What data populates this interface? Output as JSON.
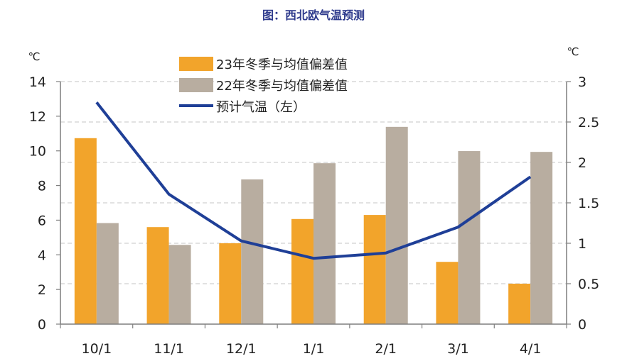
{
  "colors": {
    "series_23": "#f2a42b",
    "series_22": "#b8ada0",
    "forecast_line": "#1f3f97",
    "title": "#2e3a8c",
    "grid": "#d0d0d0",
    "axis": "#7f7f7f"
  },
  "chart_data": {
    "type": "bar",
    "title": "图：西北欧气温预测",
    "left_unit": "℃",
    "right_unit": "℃",
    "categories": [
      "10/1",
      "11/1",
      "12/1",
      "1/1",
      "2/1",
      "3/1",
      "4/1"
    ],
    "y_left": {
      "lim": [
        0,
        14
      ],
      "ticks": [
        "0",
        "2",
        "4",
        "6",
        "8",
        "10",
        "12",
        "14"
      ]
    },
    "y_right": {
      "lim": [
        0,
        3
      ],
      "ticks": [
        "0",
        "0.5",
        "1",
        "1.5",
        "2",
        "2.5",
        "3"
      ]
    },
    "grid": true,
    "legend_position": "top-center",
    "series": [
      {
        "name": "23年冬季与均值偏差值",
        "type": "bar",
        "axis": "right",
        "values": [
          2.3,
          1.2,
          1.0,
          1.3,
          1.35,
          0.77,
          0.5
        ]
      },
      {
        "name": "22年冬季与均值偏差值",
        "type": "bar",
        "axis": "right",
        "values": [
          1.25,
          0.98,
          1.79,
          1.99,
          2.44,
          2.14,
          2.13
        ]
      },
      {
        "name": "预计气温（左）",
        "type": "line",
        "axis": "left",
        "values": [
          12.8,
          7.5,
          4.8,
          3.8,
          4.1,
          5.6,
          8.5
        ]
      }
    ]
  }
}
